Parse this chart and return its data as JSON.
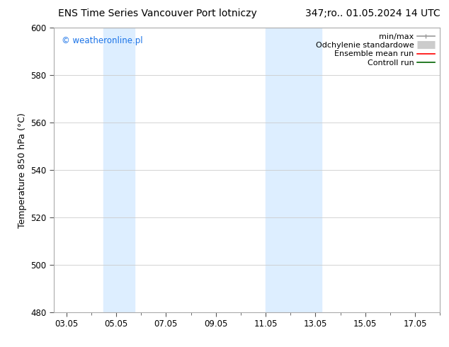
{
  "title_left": "ENS Time Series Vancouver Port lotniczy",
  "title_right": "347;ro.. 01.05.2024 14 UTC",
  "ylabel": "Temperature 850 hPa (°C)",
  "ylim": [
    480,
    600
  ],
  "yticks": [
    480,
    500,
    520,
    540,
    560,
    580,
    600
  ],
  "xlim": [
    2.5,
    18.0
  ],
  "xtick_labels": [
    "03.05",
    "05.05",
    "07.05",
    "09.05",
    "11.05",
    "13.05",
    "15.05",
    "17.05"
  ],
  "xtick_positions": [
    3,
    5,
    7,
    9,
    11,
    13,
    15,
    17
  ],
  "shaded_bands": [
    {
      "x_start": 4.5,
      "x_end": 5.75
    },
    {
      "x_start": 11.0,
      "x_end": 13.25
    }
  ],
  "shaded_color": "#ddeeff",
  "watermark_text": "© weatheronline.pl",
  "watermark_color": "#1a73e8",
  "background_color": "#ffffff",
  "grid_color": "#cccccc",
  "spine_color": "#aaaaaa",
  "tick_color": "#555555",
  "font_size_title": 10,
  "font_size_axis_label": 9,
  "font_size_tick": 8.5,
  "font_size_legend": 8,
  "font_size_watermark": 8.5
}
